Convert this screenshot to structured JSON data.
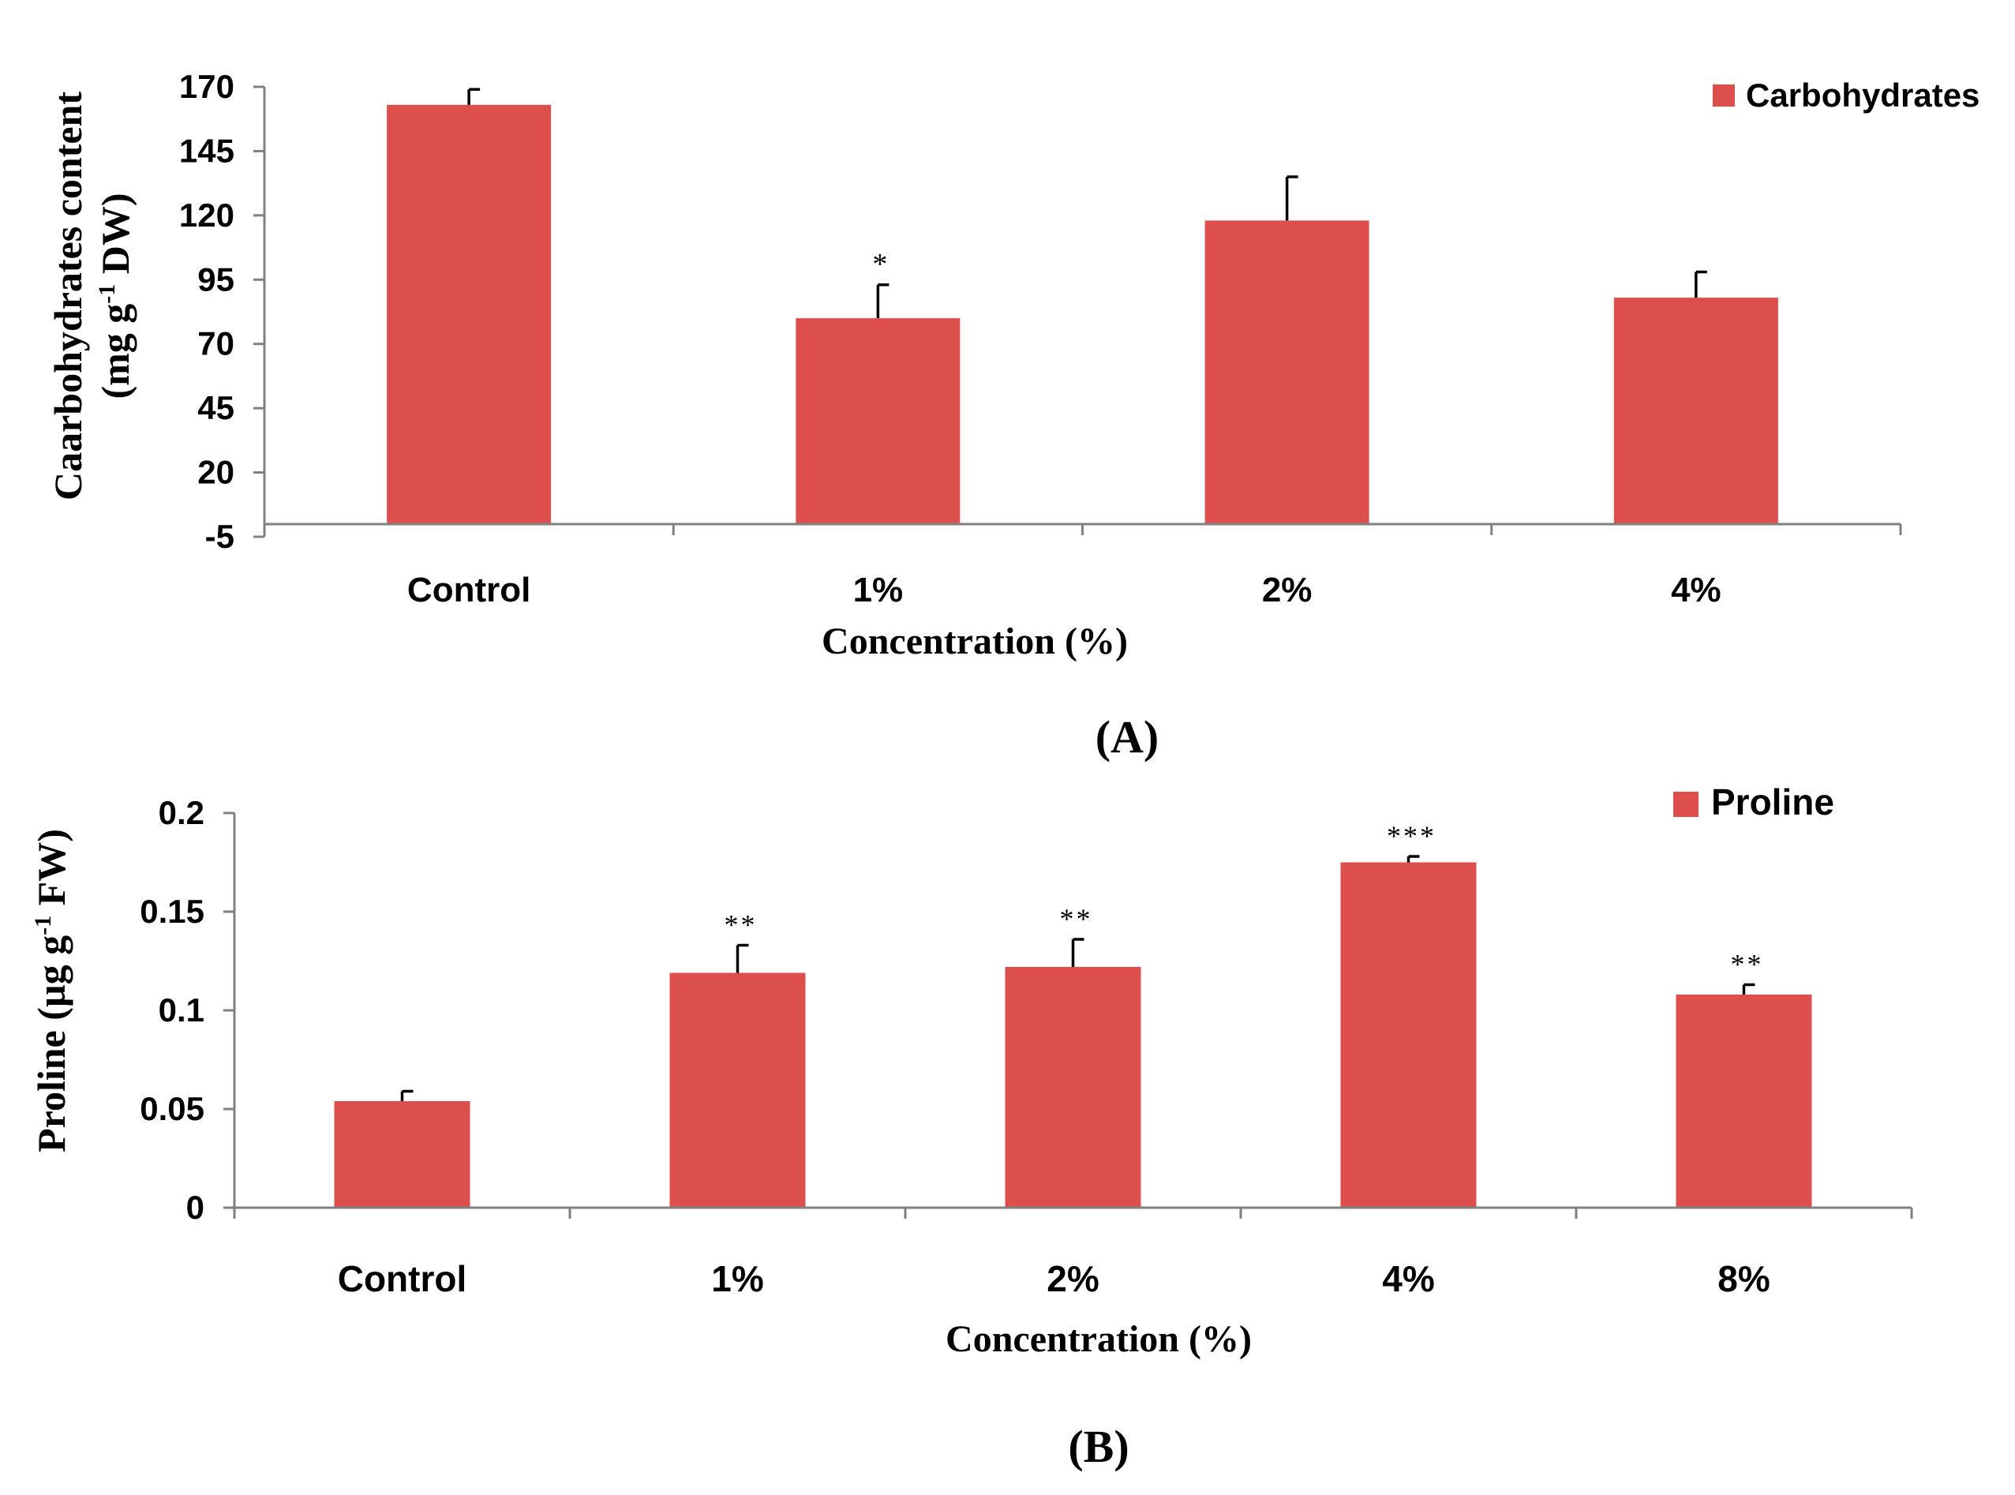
{
  "chart_data": [
    {
      "type": "bar",
      "panel_label": "(A)",
      "categories": [
        "Control",
        "1%",
        "2%",
        "4%"
      ],
      "series": [
        {
          "name": "Carbohydrates",
          "values": [
            163,
            80,
            118,
            88
          ],
          "errors": [
            6,
            13,
            17,
            10
          ],
          "significance": [
            "",
            "*",
            "",
            ""
          ]
        }
      ],
      "color": "#dd4f4c",
      "ylabel_line1": "Caarbohydrates content",
      "ylabel_line2_pre": "(mg g",
      "ylabel_line2_sup": "-1",
      "ylabel_line2_post": " DW)",
      "xlabel": "Concentration (%)",
      "yticks": [
        "170",
        "145",
        "120",
        "95",
        "70",
        "45",
        "20",
        "-5"
      ],
      "ytick_values": [
        170,
        145,
        120,
        95,
        70,
        45,
        20,
        -5
      ],
      "ylim": [
        -5,
        170
      ],
      "baseline": 0,
      "legend": "top-right"
    },
    {
      "type": "bar",
      "panel_label": "(B)",
      "categories": [
        "Control",
        "1%",
        "2%",
        "4%",
        "8%"
      ],
      "series": [
        {
          "name": "Proline",
          "values": [
            0.054,
            0.119,
            0.122,
            0.175,
            0.108
          ],
          "errors": [
            0.005,
            0.014,
            0.014,
            0.003,
            0.005
          ],
          "significance": [
            "",
            "**",
            "**",
            "***",
            "**"
          ]
        }
      ],
      "color": "#dd4f4c",
      "ylabel_pre": "Proline  (µg g",
      "ylabel_sup": "-1",
      "ylabel_post": " FW)",
      "xlabel": "Concentration (%)",
      "yticks": [
        "0.2",
        "0.15",
        "0.1",
        "0.05",
        "0"
      ],
      "ytick_values": [
        0.2,
        0.15,
        0.1,
        0.05,
        0
      ],
      "ylim": [
        0,
        0.2
      ],
      "baseline": 0,
      "legend": "top-right"
    }
  ]
}
